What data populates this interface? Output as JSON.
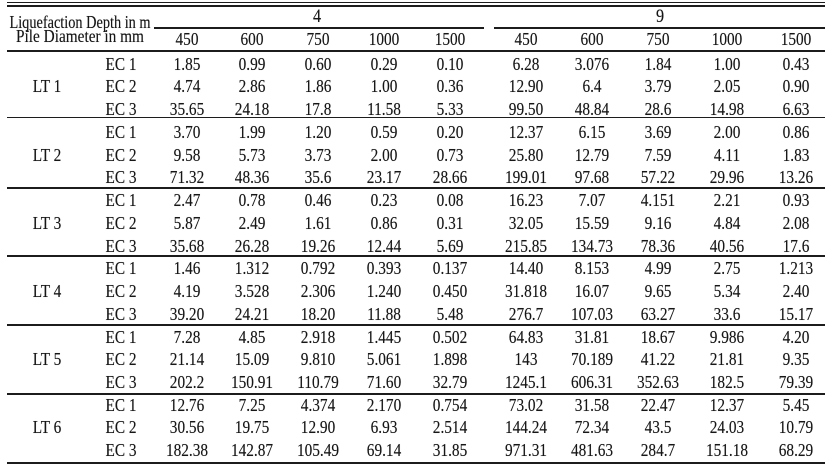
{
  "table": {
    "header": {
      "row1_label": "Liquefaction Depth in m",
      "row2_label": "Pile Diameter in mm",
      "depth_groups": [
        {
          "depth": "4",
          "diameters": [
            "450",
            "600",
            "750",
            "1000",
            "1500"
          ]
        },
        {
          "depth": "9",
          "diameters": [
            "450",
            "600",
            "750",
            "1000",
            "1500"
          ]
        }
      ]
    },
    "groups": [
      {
        "label": "LT 1",
        "rows": [
          {
            "label": "EC 1",
            "values": [
              "1.85",
              "0.99",
              "0.60",
              "0.29",
              "0.10",
              "6.28",
              "3.076",
              "1.84",
              "1.00",
              "0.43"
            ]
          },
          {
            "label": "EC 2",
            "values": [
              "4.74",
              "2.86",
              "1.86",
              "1.00",
              "0.36",
              "12.90",
              "6.4",
              "3.79",
              "2.05",
              "0.90"
            ]
          },
          {
            "label": "EC 3",
            "values": [
              "35.65",
              "24.18",
              "17.8",
              "11.58",
              "5.33",
              "99.50",
              "48.84",
              "28.6",
              "14.98",
              "6.63"
            ]
          }
        ]
      },
      {
        "label": "LT 2",
        "rows": [
          {
            "label": "EC 1",
            "values": [
              "3.70",
              "1.99",
              "1.20",
              "0.59",
              "0.20",
              "12.37",
              "6.15",
              "3.69",
              "2.00",
              "0.86"
            ]
          },
          {
            "label": "EC 2",
            "values": [
              "9.58",
              "5.73",
              "3.73",
              "2.00",
              "0.73",
              "25.80",
              "12.79",
              "7.59",
              "4.11",
              "1.83"
            ]
          },
          {
            "label": "EC 3",
            "values": [
              "71.32",
              "48.36",
              "35.6",
              "23.17",
              "28.66",
              "199.01",
              "97.68",
              "57.22",
              "29.96",
              "13.26"
            ]
          }
        ]
      },
      {
        "label": "LT 3",
        "rows": [
          {
            "label": "EC 1",
            "values": [
              "2.47",
              "0.78",
              "0.46",
              "0.23",
              "0.08",
              "16.23",
              "7.07",
              "4.151",
              "2.21",
              "0.93"
            ]
          },
          {
            "label": "EC 2",
            "values": [
              "5.87",
              "2.49",
              "1.61",
              "0.86",
              "0.31",
              "32.05",
              "15.59",
              "9.16",
              "4.84",
              "2.08"
            ]
          },
          {
            "label": "EC 3",
            "values": [
              "35.68",
              "26.28",
              "19.26",
              "12.44",
              "5.69",
              "215.85",
              "134.73",
              "78.36",
              "40.56",
              "17.6"
            ]
          }
        ]
      },
      {
        "label": "LT 4",
        "rows": [
          {
            "label": "EC 1",
            "values": [
              "1.46",
              "1.312",
              "0.792",
              "0.393",
              "0.137",
              "14.40",
              "8.153",
              "4.99",
              "2.75",
              "1.213"
            ]
          },
          {
            "label": "EC 2",
            "values": [
              "4.19",
              "3.528",
              "2.306",
              "1.240",
              "0.450",
              "31.818",
              "16.07",
              "9.65",
              "5.34",
              "2.40"
            ]
          },
          {
            "label": "EC 3",
            "values": [
              "39.20",
              "24.21",
              "18.20",
              "11.88",
              "5.48",
              "276.7",
              "107.03",
              "63.27",
              "33.6",
              "15.17"
            ]
          }
        ]
      },
      {
        "label": "LT 5",
        "rows": [
          {
            "label": "EC 1",
            "values": [
              "7.28",
              "4.85",
              "2.918",
              "1.445",
              "0.502",
              "64.83",
              "31.81",
              "18.67",
              "9.986",
              "4.20"
            ]
          },
          {
            "label": "EC 2",
            "values": [
              "21.14",
              "15.09",
              "9.810",
              "5.061",
              "1.898",
              "143",
              "70.189",
              "41.22",
              "21.81",
              "9.35"
            ]
          },
          {
            "label": "EC 3",
            "values": [
              "202.2",
              "150.91",
              "110.79",
              "71.60",
              "32.79",
              "1245.1",
              "606.31",
              "352.63",
              "182.5",
              "79.39"
            ]
          }
        ]
      },
      {
        "label": "LT 6",
        "rows": [
          {
            "label": "EC 1",
            "values": [
              "12.76",
              "7.25",
              "4.374",
              "2.170",
              "0.754",
              "73.02",
              "31.58",
              "22.47",
              "12.37",
              "5.45"
            ]
          },
          {
            "label": "EC 2",
            "values": [
              "30.56",
              "19.75",
              "12.90",
              "6.93",
              "2.514",
              "144.24",
              "72.34",
              "43.5",
              "24.03",
              "10.79"
            ]
          },
          {
            "label": "EC 3",
            "values": [
              "182.38",
              "142.87",
              "105.49",
              "69.14",
              "31.85",
              "971.31",
              "481.63",
              "284.7",
              "151.18",
              "68.29"
            ]
          }
        ]
      }
    ]
  }
}
